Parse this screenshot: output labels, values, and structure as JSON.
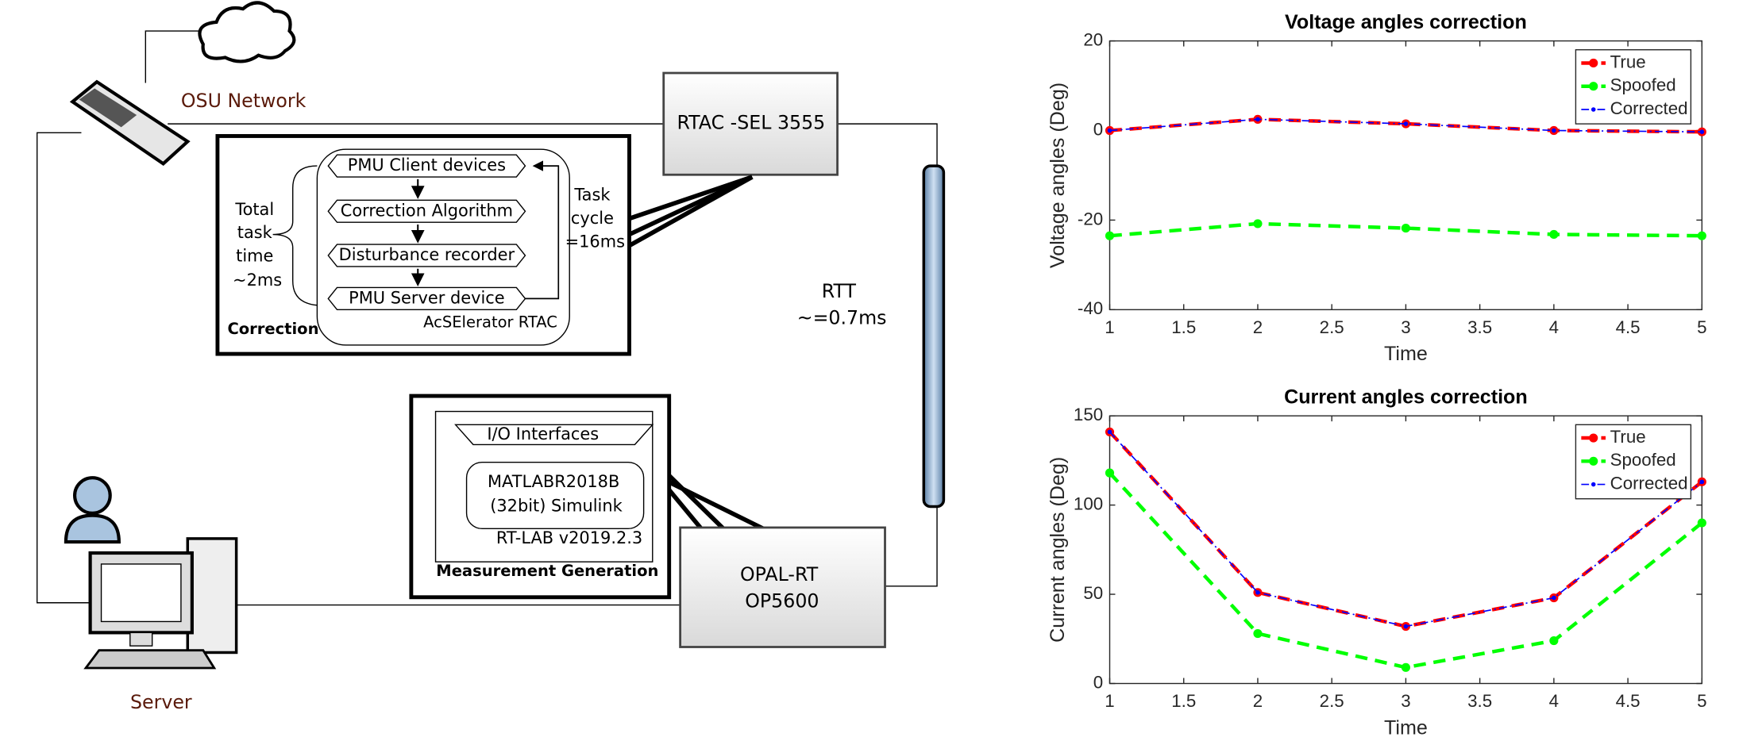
{
  "diagram": {
    "network_label": "OSU Network",
    "server_label": "Server",
    "rtac_box": "RTAC -SEL 3555",
    "correction_steps": [
      "PMU Client devices",
      "Correction Algorithm",
      "Disturbance recorder",
      "PMU Server device"
    ],
    "rtac_software": "AcSElerator RTAC",
    "correction_label": "Correction",
    "total_task_time": [
      "Total",
      "task",
      "time",
      "~2ms"
    ],
    "task_cycle": [
      "Task",
      "cycle",
      "=16ms"
    ],
    "rtt": [
      "RTT",
      "~=0.7ms"
    ],
    "io_label": "I/O Interfaces",
    "simulink": [
      "MATLABR2018B",
      "(32bit) Simulink"
    ],
    "rt_lab": "RT-LAB v2019.2.3",
    "measurement_label": "Measurement Generation",
    "opal_rt": [
      "OPAL-RT",
      "OP5600"
    ]
  },
  "chart_data": [
    {
      "type": "line",
      "title": "Voltage angles correction",
      "x_label": "Time",
      "y_label": "Voltage angles (Deg)",
      "x": [
        1,
        2,
        3,
        4,
        5
      ],
      "series": [
        {
          "name": "True",
          "color": "#ff0000",
          "line_style": "dashed",
          "values": [
            0,
            2.5,
            1.5,
            0,
            -0.3
          ]
        },
        {
          "name": "Spoofed",
          "color": "#00ff00",
          "line_style": "dashed",
          "values": [
            -23.5,
            -20.8,
            -21.8,
            -23.2,
            -23.5
          ]
        },
        {
          "name": "Corrected",
          "color": "#0000ff",
          "line_style": "dashdot",
          "values": [
            0,
            2.5,
            1.5,
            0,
            -0.3
          ]
        }
      ],
      "xlim": [
        1,
        5
      ],
      "ylim": [
        -40,
        20
      ],
      "xticks": [
        1,
        1.5,
        2,
        2.5,
        3,
        3.5,
        4,
        4.5,
        5
      ],
      "yticks": [
        -40,
        -20,
        0,
        20
      ],
      "legend": "upper right"
    },
    {
      "type": "line",
      "title": "Current angles correction",
      "x_label": "Time",
      "y_label": "Current angles (Deg)",
      "x": [
        1,
        2,
        3,
        4,
        5
      ],
      "series": [
        {
          "name": "True",
          "color": "#ff0000",
          "line_style": "dashed",
          "values": [
            141,
            51,
            32,
            48,
            113
          ]
        },
        {
          "name": "Spoofed",
          "color": "#00ff00",
          "line_style": "dashed",
          "values": [
            118,
            28,
            9,
            24,
            90
          ]
        },
        {
          "name": "Corrected",
          "color": "#0000ff",
          "line_style": "dashdot",
          "values": [
            141,
            51,
            32,
            48,
            113
          ]
        }
      ],
      "xlim": [
        1,
        5
      ],
      "ylim": [
        0,
        150
      ],
      "xticks": [
        1,
        1.5,
        2,
        2.5,
        3,
        3.5,
        4,
        4.5,
        5
      ],
      "yticks": [
        0,
        50,
        100,
        150
      ],
      "legend": "upper right"
    }
  ]
}
